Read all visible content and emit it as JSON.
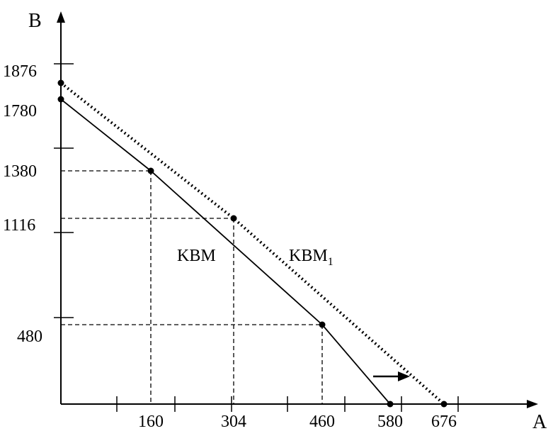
{
  "chart_data": {
    "type": "line",
    "xlabel": "A",
    "ylabel": "B",
    "x_ticks_labeled": [
      160,
      304,
      460,
      580,
      676
    ],
    "y_ticks_labeled": [
      1876,
      1780,
      1380,
      1116,
      480
    ],
    "series": [
      {
        "name": "KBM",
        "style": "solid",
        "points": [
          [
            0,
            1780
          ],
          [
            160,
            1380
          ],
          [
            460,
            480
          ],
          [
            580,
            0
          ]
        ]
      },
      {
        "name": "KBM",
        "subscript": "1",
        "style": "dotted",
        "points": [
          [
            0,
            1876
          ],
          [
            304,
            1116
          ],
          [
            676,
            0
          ]
        ]
      }
    ],
    "guides": [
      {
        "x": 160,
        "y": 1380
      },
      {
        "x": 304,
        "y": 1116
      },
      {
        "x": 460,
        "y": 480
      }
    ],
    "annotation": {
      "type": "arrow",
      "direction": "right"
    },
    "grid": false
  }
}
